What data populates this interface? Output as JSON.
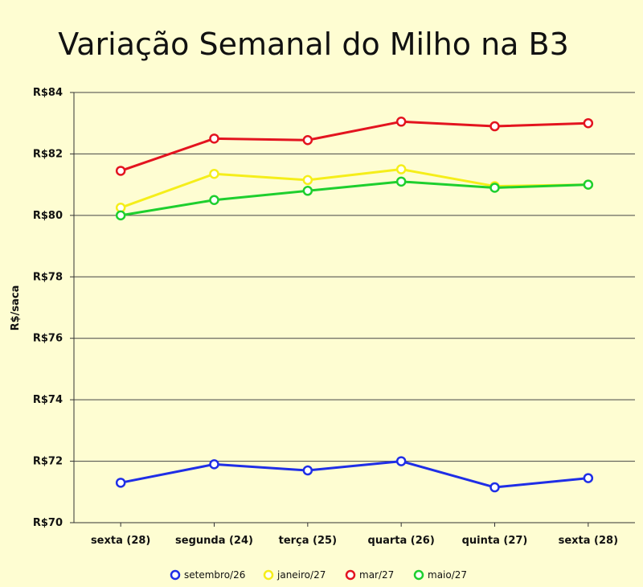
{
  "chart_data": {
    "type": "line",
    "title": "Variação Semanal do Milho na B3",
    "xlabel": "",
    "ylabel": "R$/saca",
    "categories": [
      "sexta (28)",
      "segunda (24)",
      "terça (25)",
      "quarta (26)",
      "quinta (27)",
      "sexta (28)"
    ],
    "ylim": [
      70,
      84
    ],
    "yticks": [
      70,
      72,
      74,
      76,
      78,
      80,
      82,
      84
    ],
    "ytick_labels": [
      "R$70",
      "R$72",
      "R$74",
      "R$76",
      "R$78",
      "R$80",
      "R$82",
      "R$84"
    ],
    "grid": true,
    "legend_position": "bottom",
    "series": [
      {
        "name": "setembro/26",
        "color": "#1f2ee6",
        "values": [
          71.3,
          71.9,
          71.7,
          72.0,
          71.15,
          71.45
        ]
      },
      {
        "name": "janeiro/27",
        "color": "#f5ee1a",
        "values": [
          80.25,
          81.35,
          81.15,
          81.5,
          80.95,
          81.0
        ]
      },
      {
        "name": "mar/27",
        "color": "#e3141f",
        "values": [
          81.45,
          82.5,
          82.45,
          83.05,
          82.9,
          83.0
        ]
      },
      {
        "name": "maio/27",
        "color": "#1ecf2e",
        "values": [
          80.0,
          80.5,
          80.8,
          81.1,
          80.9,
          81.0
        ]
      }
    ]
  }
}
